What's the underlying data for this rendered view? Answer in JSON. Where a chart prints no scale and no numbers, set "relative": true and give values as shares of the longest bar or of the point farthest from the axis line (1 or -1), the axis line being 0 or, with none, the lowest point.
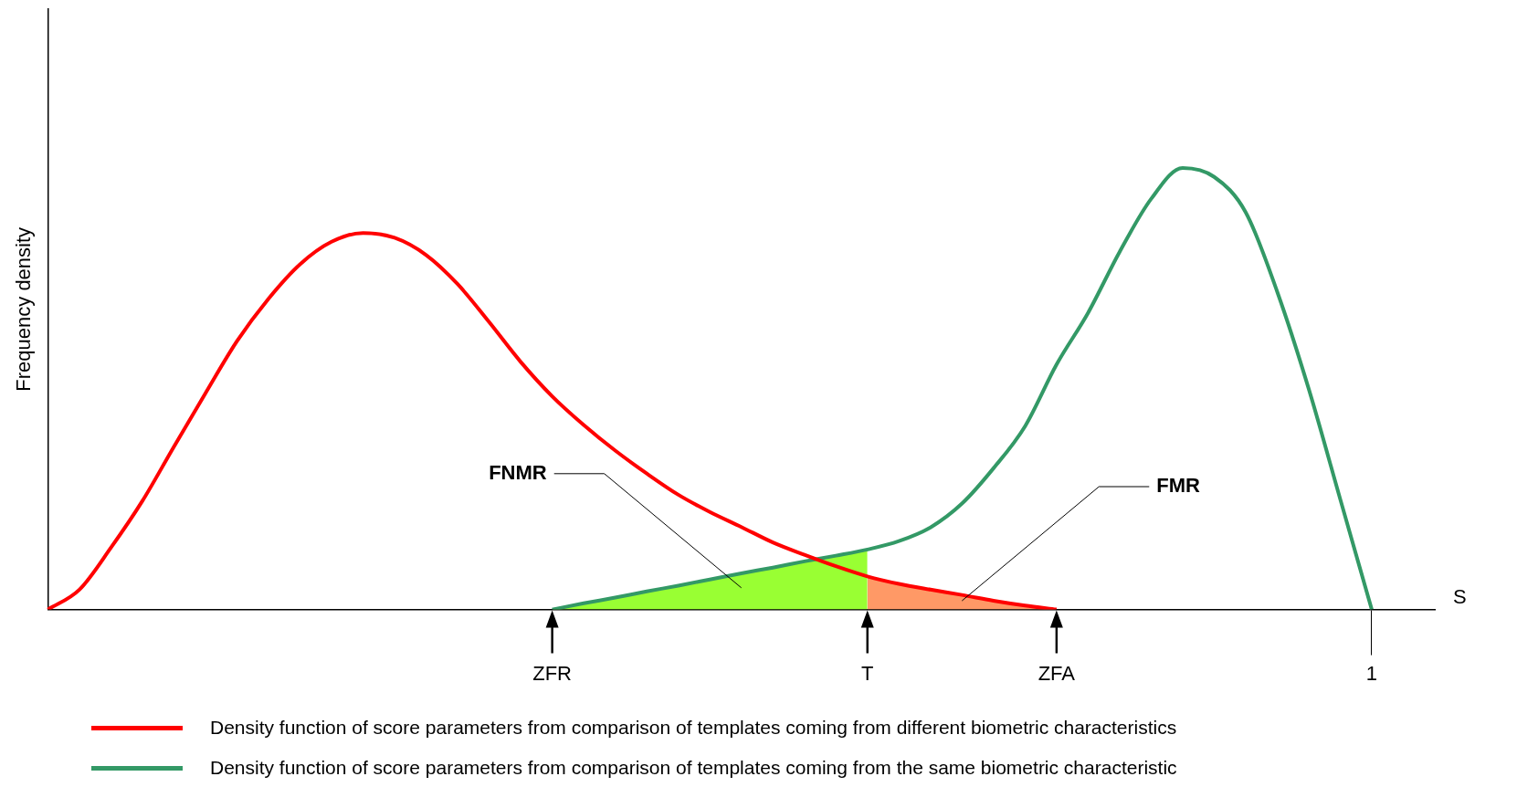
{
  "chart_data": {
    "type": "line",
    "relative": true,
    "xlabel": "S",
    "ylabel": "Frequency density",
    "categories": [
      null,
      null,
      null,
      null,
      null,
      null,
      null,
      null,
      null,
      null,
      null,
      null,
      null,
      null,
      null,
      null,
      "ZFR",
      null,
      null,
      null,
      null,
      null,
      null,
      null,
      null,
      null,
      "T",
      null,
      null,
      null,
      null,
      null,
      "ZFA",
      null,
      null,
      null,
      null,
      null,
      null,
      null,
      null,
      null,
      "1",
      null,
      null
    ],
    "legend": "bottom",
    "marker": "none",
    "series": [
      {
        "type": "area",
        "color": "#99ff33",
        "values": [
          null,
          null,
          null,
          null,
          null,
          null,
          null,
          null,
          null,
          null,
          null,
          null,
          null,
          null,
          null,
          null,
          0,
          0.014,
          0.027,
          0.041,
          0.054,
          0.068,
          0.082,
          0.095,
          0.109,
          0.122,
          0.136,
          null,
          null,
          null,
          null,
          null,
          null,
          null,
          null,
          null,
          null,
          null,
          null,
          null,
          null,
          null,
          null,
          null,
          null
        ]
      },
      {
        "type": "area",
        "color": "#ff9966",
        "values": [
          null,
          null,
          null,
          null,
          null,
          null,
          null,
          null,
          null,
          null,
          null,
          null,
          null,
          null,
          null,
          null,
          null,
          null,
          null,
          null,
          null,
          null,
          null,
          null,
          null,
          null,
          0.075,
          0.058,
          0.045,
          0.033,
          0.02,
          0.009,
          0,
          null,
          null,
          null,
          null,
          null,
          null,
          null,
          null,
          null,
          null,
          null,
          null
        ]
      },
      {
        "name": "Density function of score parameters from comparison of templates coming from different biometric characteristics",
        "color": "#ff0000",
        "values": [
          0,
          0.045,
          0.14,
          0.246,
          0.369,
          0.49,
          0.608,
          0.704,
          0.782,
          0.833,
          0.853,
          0.842,
          0.803,
          0.737,
          0.651,
          0.561,
          0.483,
          0.418,
          0.36,
          0.308,
          0.26,
          0.221,
          0.187,
          0.152,
          0.124,
          0.098,
          0.075,
          0.058,
          0.045,
          0.033,
          0.02,
          0.009,
          0,
          null,
          null,
          null,
          null,
          null,
          null,
          null,
          null,
          null,
          null,
          null,
          null
        ]
      },
      {
        "name": "Density function of score parameters from comparison of templates coming from the same biometric characteristic",
        "color": "#339966",
        "values": [
          null,
          null,
          null,
          null,
          null,
          null,
          null,
          null,
          null,
          null,
          null,
          null,
          null,
          null,
          null,
          null,
          0,
          0.014,
          0.027,
          0.041,
          0.054,
          0.068,
          0.082,
          0.095,
          0.109,
          0.122,
          0.136,
          0.155,
          0.186,
          0.24,
          0.32,
          0.415,
          0.555,
          0.672,
          0.81,
          0.93,
          1,
          0.98,
          0.9,
          0.72,
          0.5,
          0.25,
          0,
          null,
          null
        ]
      }
    ],
    "annotations": [
      "FNMR",
      "FMR"
    ]
  }
}
